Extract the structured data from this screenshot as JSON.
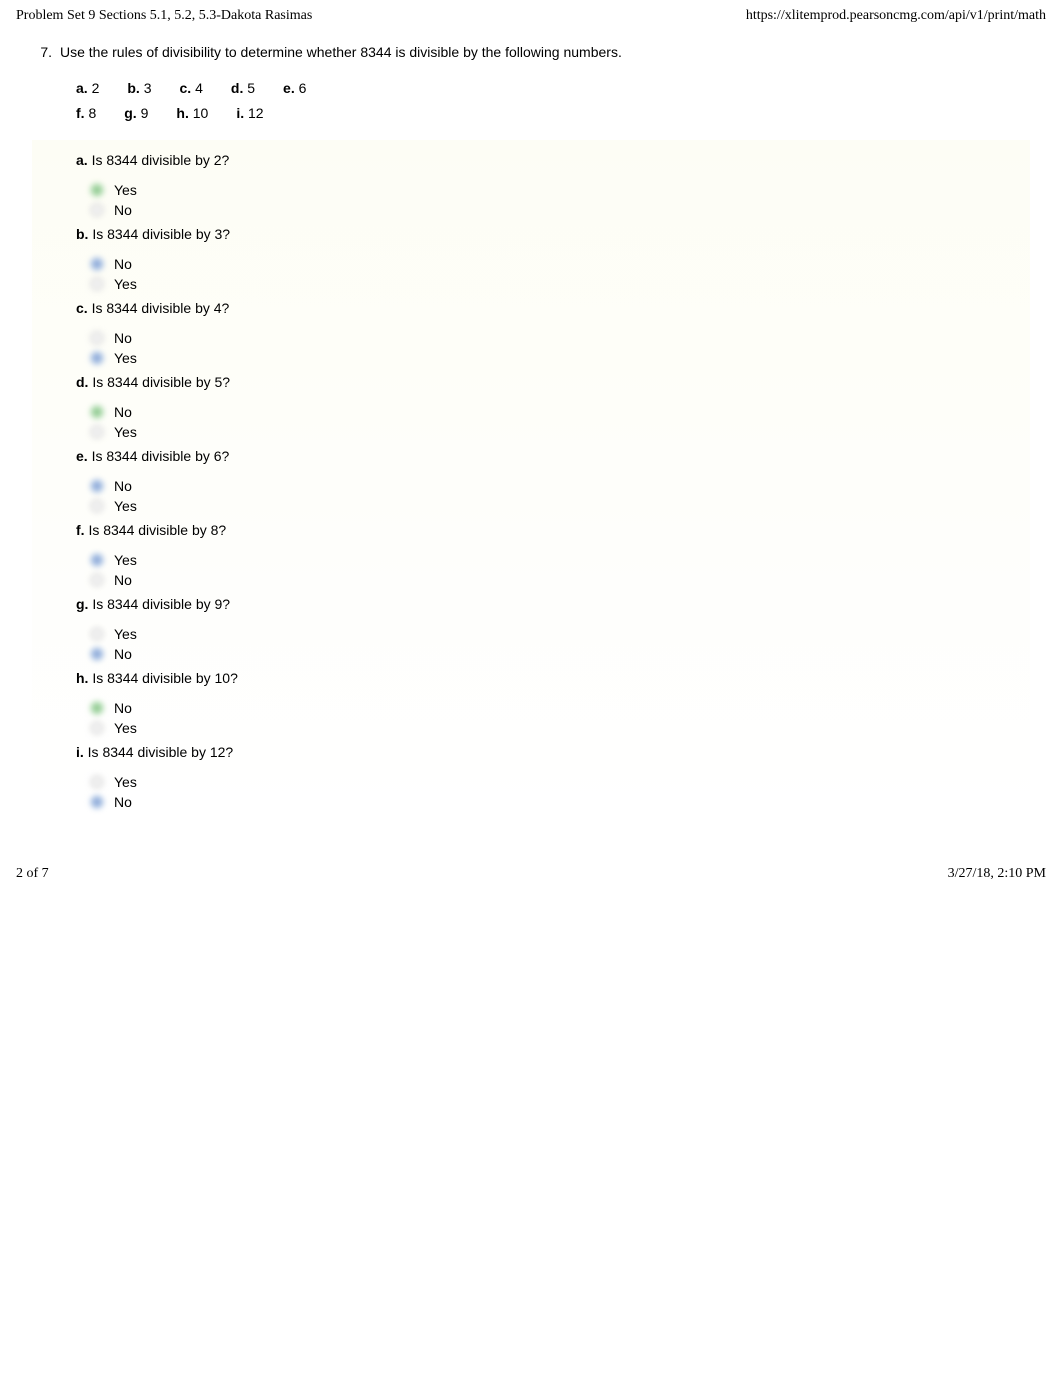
{
  "header": {
    "left": "Problem Set 9 Sections 5.1, 5.2, 5.3-Dakota Rasimas",
    "right": "https://xlitemprod.pearsoncmg.com/api/v1/print/math"
  },
  "question": {
    "number": "7.",
    "text": "Use the rules of divisibility to determine whether 8344 is divisible by the following numbers."
  },
  "parts_row1": [
    {
      "label": "a.",
      "value": "2"
    },
    {
      "label": "b.",
      "value": "3"
    },
    {
      "label": "c.",
      "value": "4"
    },
    {
      "label": "d.",
      "value": "5"
    },
    {
      "label": "e.",
      "value": "6"
    }
  ],
  "parts_row2": [
    {
      "label": "f.",
      "value": "8"
    },
    {
      "label": "g.",
      "value": "9"
    },
    {
      "label": "h.",
      "value": "10"
    },
    {
      "label": "i.",
      "value": "12"
    }
  ],
  "subs": [
    {
      "label": "a.",
      "q": "Is 8344 divisible by 2?",
      "opts": [
        {
          "t": "Yes",
          "sel": "green"
        },
        {
          "t": "No",
          "sel": "none"
        }
      ]
    },
    {
      "label": "b.",
      "q": "Is 8344 divisible by 3?",
      "opts": [
        {
          "t": "No",
          "sel": "blue"
        },
        {
          "t": "Yes",
          "sel": "none"
        }
      ]
    },
    {
      "label": "c.",
      "q": "Is 8344 divisible by 4?",
      "opts": [
        {
          "t": "No",
          "sel": "none"
        },
        {
          "t": "Yes",
          "sel": "blue"
        }
      ]
    },
    {
      "label": "d.",
      "q": "Is 8344 divisible by 5?",
      "opts": [
        {
          "t": "No",
          "sel": "green"
        },
        {
          "t": "Yes",
          "sel": "none"
        }
      ]
    },
    {
      "label": "e.",
      "q": "Is 8344 divisible by 6?",
      "opts": [
        {
          "t": "No",
          "sel": "blue"
        },
        {
          "t": "Yes",
          "sel": "none"
        }
      ]
    },
    {
      "label": "f.",
      "q": "Is 8344 divisible by 8?",
      "opts": [
        {
          "t": "Yes",
          "sel": "blue"
        },
        {
          "t": "No",
          "sel": "none"
        }
      ]
    },
    {
      "label": "g.",
      "q": "Is 8344 divisible by 9?",
      "opts": [
        {
          "t": "Yes",
          "sel": "none"
        },
        {
          "t": "No",
          "sel": "blue"
        }
      ]
    },
    {
      "label": "h.",
      "q": "Is 8344 divisible by 10?",
      "opts": [
        {
          "t": "No",
          "sel": "green"
        },
        {
          "t": "Yes",
          "sel": "none"
        }
      ]
    },
    {
      "label": "i.",
      "q": "Is 8344 divisible by 12?",
      "opts": [
        {
          "t": "Yes",
          "sel": "none"
        },
        {
          "t": "No",
          "sel": "blue"
        }
      ]
    }
  ],
  "footer": {
    "left": "2 of 7",
    "right": "3/27/18, 2:10 PM"
  }
}
